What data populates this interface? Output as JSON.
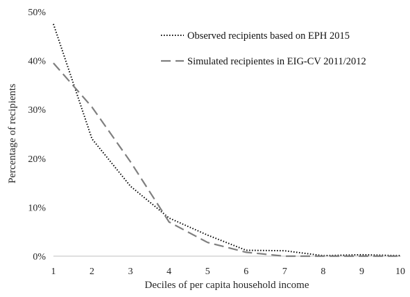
{
  "chart_data": {
    "type": "line",
    "x": [
      1,
      2,
      3,
      4,
      5,
      6,
      7,
      8,
      9,
      10
    ],
    "xlabel": "Deciles of per capita household income",
    "ylabel": "Percentage of recipients",
    "xlim": [
      1,
      10
    ],
    "ylim": [
      0,
      50
    ],
    "y_ticks": [
      "0%",
      "10%",
      "20%",
      "30%",
      "40%",
      "50%"
    ],
    "x_ticks": [
      "1",
      "2",
      "3",
      "4",
      "5",
      "6",
      "7",
      "8",
      "9",
      "10"
    ],
    "grid": false,
    "legend_position": "top-right",
    "series": [
      {
        "name": "Observed recipients based on EPH 2015",
        "style": "dotted",
        "color": "#000000",
        "values": [
          47.5,
          24,
          14.3,
          7.8,
          4.3,
          1.2,
          1.1,
          0.1,
          0.3,
          0.1
        ]
      },
      {
        "name": "Simulated recipientes in EIG-CV 2011/2012",
        "style": "dashed",
        "color": "#7f7f7f",
        "values": [
          39.5,
          30.5,
          19.3,
          7.0,
          2.8,
          0.8,
          0.0,
          0.0,
          0.0,
          0.0
        ]
      }
    ]
  }
}
